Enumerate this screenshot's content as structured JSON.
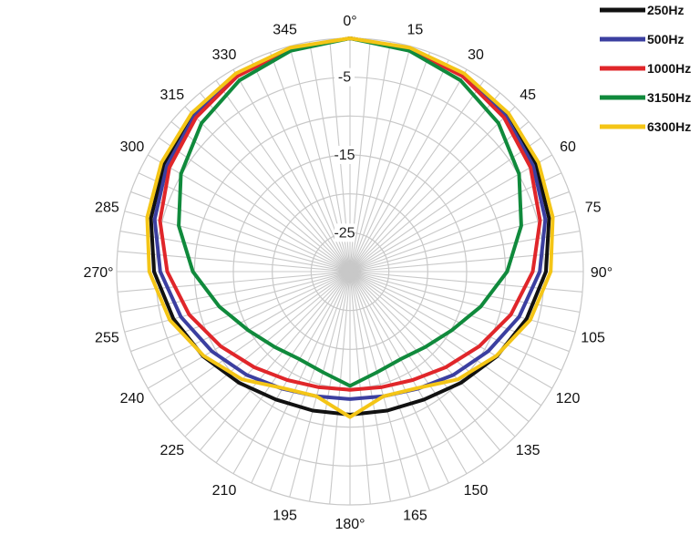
{
  "chart_data": {
    "type": "line",
    "subtype": "polar",
    "title": "",
    "angle_unit": "degrees",
    "angle_tick_labels": [
      {
        "angle": 0,
        "label": "0°"
      },
      {
        "angle": 15,
        "label": "15"
      },
      {
        "angle": 30,
        "label": "30"
      },
      {
        "angle": 45,
        "label": "45"
      },
      {
        "angle": 60,
        "label": "60"
      },
      {
        "angle": 75,
        "label": "75"
      },
      {
        "angle": 90,
        "label": "90°"
      },
      {
        "angle": 105,
        "label": "105"
      },
      {
        "angle": 120,
        "label": "120"
      },
      {
        "angle": 135,
        "label": "135"
      },
      {
        "angle": 150,
        "label": "150"
      },
      {
        "angle": 165,
        "label": "165"
      },
      {
        "angle": 180,
        "label": "180°"
      },
      {
        "angle": 195,
        "label": "195"
      },
      {
        "angle": 210,
        "label": "210"
      },
      {
        "angle": 225,
        "label": "225"
      },
      {
        "angle": 240,
        "label": "240"
      },
      {
        "angle": 255,
        "label": "255"
      },
      {
        "angle": 270,
        "label": "270°"
      },
      {
        "angle": 285,
        "label": "285"
      },
      {
        "angle": 300,
        "label": "300"
      },
      {
        "angle": 315,
        "label": "315"
      },
      {
        "angle": 330,
        "label": "330"
      },
      {
        "angle": 345,
        "label": "345"
      }
    ],
    "radial_range_db": [
      -30,
      0
    ],
    "radial_ticks": [
      -5,
      -10,
      -15,
      -20,
      -25
    ],
    "radial_tick_labels": [
      {
        "value": -5,
        "label": "-5"
      },
      {
        "value": -15,
        "label": "-15"
      },
      {
        "value": -25,
        "label": "-25"
      }
    ],
    "grid": true,
    "angle_grid_step": 5,
    "legend_position": "top-right",
    "angles": [
      0,
      15,
      30,
      45,
      60,
      75,
      90,
      105,
      120,
      135,
      150,
      165,
      180
    ],
    "series": [
      {
        "name": "250Hz",
        "color": "#111111",
        "values": [
          0,
          -0.3,
          -0.8,
          -1.5,
          -2.4,
          -3.5,
          -4.8,
          -6.5,
          -8.2,
          -9.8,
          -11.0,
          -11.5,
          -11.6
        ]
      },
      {
        "name": "500Hz",
        "color": "#3b3fa0",
        "values": [
          0,
          -0.3,
          -0.9,
          -1.7,
          -2.8,
          -4.0,
          -5.6,
          -7.5,
          -9.5,
          -11.2,
          -12.6,
          -13.4,
          -13.6
        ]
      },
      {
        "name": "1000Hz",
        "color": "#e0262a",
        "values": [
          0,
          -0.4,
          -1.0,
          -2.0,
          -3.2,
          -4.7,
          -6.5,
          -8.6,
          -10.8,
          -12.6,
          -13.9,
          -14.6,
          -14.8
        ]
      },
      {
        "name": "3150Hz",
        "color": "#108a3c",
        "values": [
          0,
          -0.6,
          -1.6,
          -3.0,
          -4.9,
          -7.2,
          -9.8,
          -12.6,
          -14.9,
          -16.3,
          -17.0,
          -16.6,
          -15.3
        ]
      },
      {
        "name": "6300Hz",
        "color": "#f4c516",
        "values": [
          0,
          -0.2,
          -0.6,
          -1.2,
          -2.0,
          -3.0,
          -4.2,
          -6.0,
          -8.3,
          -10.4,
          -12.7,
          -13.4,
          -11.3
        ]
      }
    ]
  }
}
